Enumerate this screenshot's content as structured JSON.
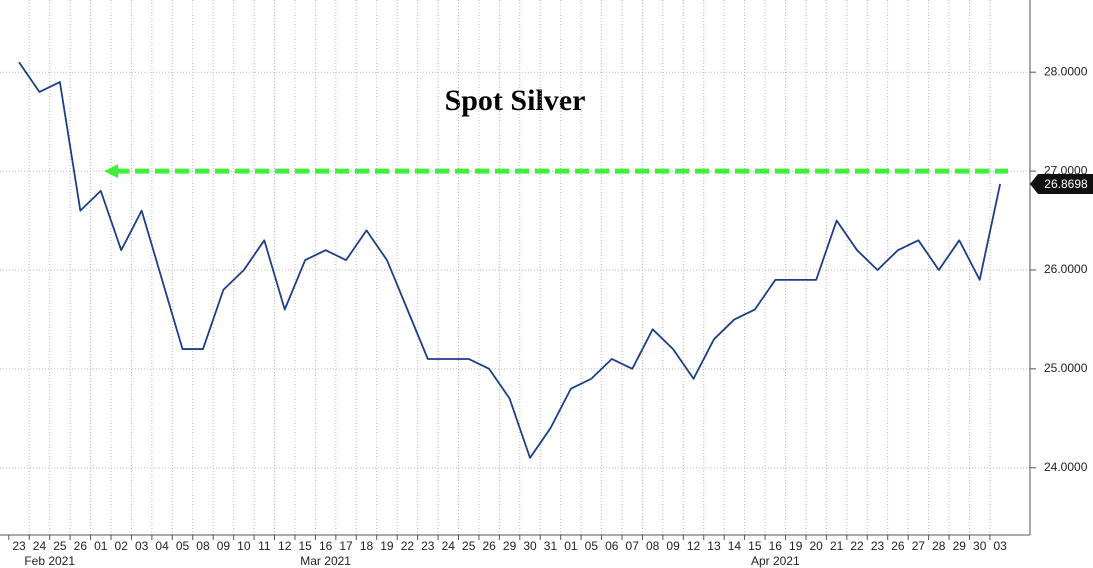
{
  "chart_data": {
    "type": "line",
    "title": "Spot Silver",
    "categories": [
      "23",
      "24",
      "25",
      "26",
      "01",
      "02",
      "03",
      "04",
      "05",
      "08",
      "09",
      "10",
      "11",
      "12",
      "15",
      "16",
      "17",
      "18",
      "19",
      "22",
      "23",
      "24",
      "25",
      "26",
      "29",
      "30",
      "31",
      "01",
      "05",
      "06",
      "07",
      "08",
      "09",
      "12",
      "13",
      "14",
      "15",
      "16",
      "19",
      "20",
      "21",
      "22",
      "23",
      "26",
      "27",
      "28",
      "29",
      "30",
      "03"
    ],
    "x_group_labels": [
      "Feb 2021",
      "Mar 2021",
      "Apr 2021"
    ],
    "series": [
      {
        "name": "Spot Silver",
        "color": "#1d3f86",
        "values": [
          28.1,
          27.8,
          27.9,
          26.6,
          26.8,
          26.2,
          26.6,
          25.9,
          25.2,
          25.2,
          25.8,
          26.0,
          26.3,
          25.6,
          26.1,
          26.2,
          26.1,
          26.4,
          26.1,
          25.6,
          25.1,
          25.1,
          25.1,
          25.0,
          24.7,
          24.1,
          24.4,
          24.8,
          24.9,
          25.1,
          25.0,
          25.4,
          25.2,
          24.9,
          25.3,
          25.5,
          25.6,
          25.9,
          25.9,
          25.9,
          26.5,
          26.2,
          26.0,
          26.2,
          26.3,
          26.0,
          26.3,
          25.9,
          26.8698
        ]
      }
    ],
    "ylim": [
      23.32,
      28.73
    ],
    "yticks": [
      {
        "value": 24,
        "label": "24.0000"
      },
      {
        "value": 25,
        "label": "25.0000"
      },
      {
        "value": 26,
        "label": "26.0000"
      },
      {
        "value": 27,
        "label": "27.0000"
      },
      {
        "value": 28,
        "label": "28.0000"
      }
    ],
    "grid": true,
    "reference_line": {
      "value": 27,
      "color": "#3ef03a"
    },
    "last_price": {
      "value": 26.8698,
      "label": "26.8698"
    }
  }
}
